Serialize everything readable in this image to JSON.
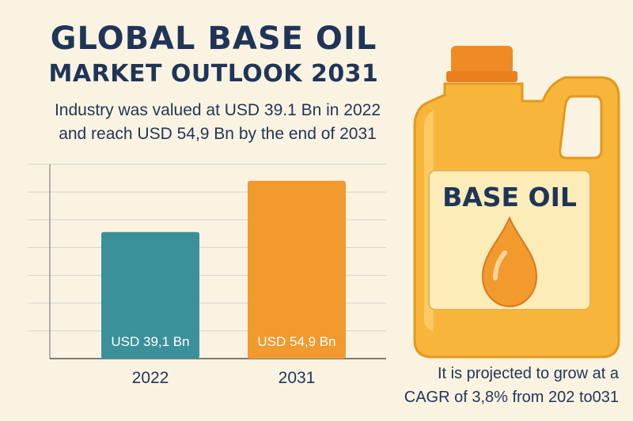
{
  "header": {
    "title_line1": "GLOBAL BASE OIL",
    "title_line2": "MARKET OUTLOOK 2031",
    "subtitle_line1": "Industry was valued at USD 39.1 Bn in 2022",
    "subtitle_line2": "and reach USD 54,9 Bn by the end of 2031"
  },
  "jug": {
    "label": "BASE OIL"
  },
  "footnote": {
    "line1": "It is projected to grow at a",
    "line2": "CAGR of 3,8% from 202 to031"
  },
  "colors": {
    "title": "#1f3558",
    "bar_2022": "#3a9199",
    "bar_2031": "#f29a2e",
    "jug_body": "#f7b63a",
    "jug_cap": "#f08a24",
    "label_panel": "#fbecb8",
    "background": "#fbf3e2"
  },
  "chart_data": {
    "type": "bar",
    "categories": [
      "2022",
      "2031"
    ],
    "values": [
      39.1,
      54.9
    ],
    "value_labels": [
      "USD 39,1 Bn",
      "USD 54,9 Bn"
    ],
    "bar_colors": [
      "#3a9199",
      "#f29a2e"
    ],
    "ylim": [
      0,
      60
    ],
    "grid": true,
    "title": "",
    "xlabel": "",
    "ylabel": ""
  }
}
